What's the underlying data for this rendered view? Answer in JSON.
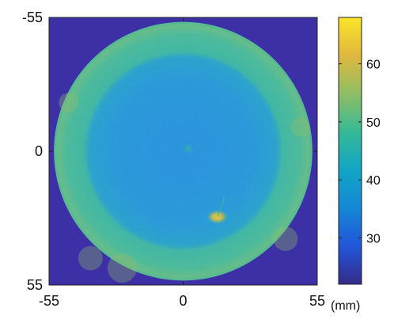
{
  "chart_data": {
    "type": "heatmap",
    "title": "",
    "xlabel": "",
    "ylabel": "",
    "xlim": [
      -55,
      55
    ],
    "ylim": [
      -55,
      55
    ],
    "y_axis_direction": "down",
    "x_ticks": [
      "-55",
      "0",
      "55"
    ],
    "y_ticks": [
      "-55",
      "0",
      "55"
    ],
    "colorbar": {
      "range": [
        22,
        68
      ],
      "ticks": [
        "30",
        "40",
        "50",
        "60"
      ],
      "unit_label": "(mm)",
      "colormap": "parula"
    },
    "background_value": 22,
    "circle": {
      "center": [
        0,
        0
      ],
      "radius": 53
    },
    "regions": [
      {
        "name": "outer ring",
        "r_from": 40,
        "r_to": 53,
        "value": 47
      },
      {
        "name": "inner disk",
        "r_from": 0,
        "r_to": 40,
        "value": 40
      },
      {
        "name": "center spot",
        "center": [
          2,
          -1
        ],
        "value": 45
      },
      {
        "name": "lower-right spot",
        "center": [
          14,
          27
        ],
        "value": 62
      }
    ]
  },
  "colors": {
    "background": "#3d2fa6",
    "colormap_stops": [
      "#352a87",
      "#2255d8",
      "#1488d5",
      "#12a6c5",
      "#35b997",
      "#8dbe65",
      "#e1b83f",
      "#f9e528"
    ]
  }
}
